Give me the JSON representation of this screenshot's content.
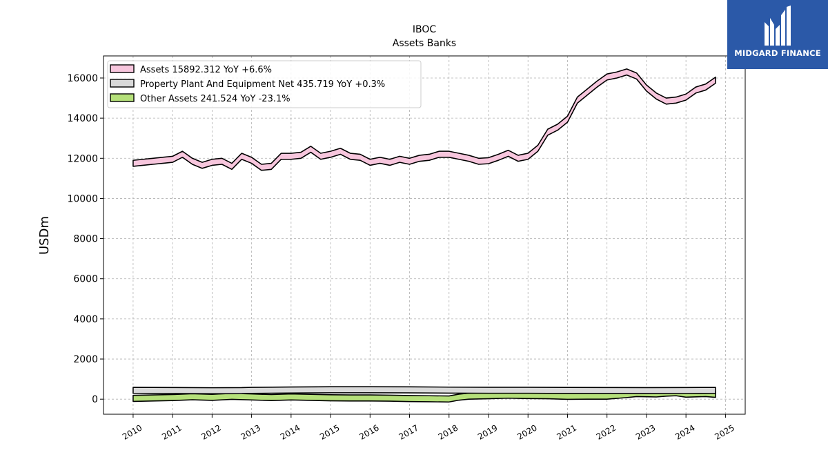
{
  "chart_data": {
    "type": "area",
    "title": "IBOC",
    "subtitle": "Assets Banks",
    "xlabel": "",
    "ylabel": "USDm",
    "x_tick_labels": [
      "2010",
      "2011",
      "2012",
      "2013",
      "2014",
      "2015",
      "2016",
      "2017",
      "2018",
      "2019",
      "2020",
      "2021",
      "2022",
      "2023",
      "2024",
      "2025"
    ],
    "y_tick_labels": [
      "0",
      "2000",
      "4000",
      "6000",
      "8000",
      "10000",
      "12000",
      "14000",
      "16000"
    ],
    "xlim": [
      2009.25,
      2025.5
    ],
    "ylim": [
      -750,
      17100
    ],
    "grid": true,
    "legend_position": "top-left",
    "series": [
      {
        "name": "Assets",
        "legend_label": "Assets  15892.312 YoY +6.6%",
        "fill_color": "#f7c6dd",
        "x": [
          2010.0,
          2010.25,
          2010.5,
          2010.75,
          2011.0,
          2011.25,
          2011.5,
          2011.75,
          2012.0,
          2012.25,
          2012.5,
          2012.75,
          2013.0,
          2013.25,
          2013.5,
          2013.75,
          2014.0,
          2014.25,
          2014.5,
          2014.75,
          2015.0,
          2015.25,
          2015.5,
          2015.75,
          2016.0,
          2016.25,
          2016.5,
          2016.75,
          2017.0,
          2017.25,
          2017.5,
          2017.75,
          2018.0,
          2018.25,
          2018.5,
          2018.75,
          2019.0,
          2019.25,
          2019.5,
          2019.75,
          2020.0,
          2020.25,
          2020.5,
          2020.75,
          2021.0,
          2021.25,
          2021.5,
          2021.75,
          2022.0,
          2022.25,
          2022.5,
          2022.75,
          2023.0,
          2023.25,
          2023.5,
          2023.75,
          2024.0,
          2024.25,
          2024.5,
          2024.75
        ],
        "values": [
          11750,
          11800,
          11850,
          11900,
          11950,
          12200,
          11850,
          11650,
          11800,
          11850,
          11600,
          12100,
          11900,
          11550,
          11600,
          12100,
          12100,
          12150,
          12450,
          12100,
          12200,
          12350,
          12100,
          12050,
          11800,
          11900,
          11800,
          11950,
          11850,
          12000,
          12050,
          12200,
          12200,
          12100,
          12000,
          11850,
          11880,
          12050,
          12250,
          12000,
          12100,
          12500,
          13300,
          13550,
          13950,
          14900,
          15300,
          15700,
          16050,
          16150,
          16300,
          16100,
          15500,
          15100,
          14850,
          14900,
          15050,
          15400,
          15550,
          15892
        ]
      },
      {
        "name": "Property Plant And Equipment Net",
        "legend_label": "Property Plant And Equipment Net  435.719 YoY +0.3%",
        "fill_color": "#d9d9d9",
        "x": [
          2010.0,
          2011.0,
          2012.0,
          2012.75,
          2013.0,
          2014.0,
          2015.0,
          2016.0,
          2017.0,
          2018.0,
          2019.0,
          2020.0,
          2021.0,
          2022.0,
          2023.0,
          2024.0,
          2024.75
        ],
        "values": [
          440,
          430,
          420,
          425,
          440,
          455,
          470,
          470,
          465,
          450,
          445,
          445,
          435,
          430,
          425,
          432,
          436
        ]
      },
      {
        "name": "Other Assets",
        "legend_label": "Other Assets  241.524 YoY -23.1%",
        "fill_color": "#b5e07a",
        "x": [
          2010.0,
          2010.5,
          2011.0,
          2011.5,
          2012.0,
          2012.5,
          2013.0,
          2013.5,
          2014.0,
          2014.5,
          2015.0,
          2015.5,
          2016.0,
          2016.5,
          2017.0,
          2017.5,
          2018.0,
          2018.25,
          2018.5,
          2019.0,
          2019.5,
          2020.0,
          2020.5,
          2021.0,
          2021.5,
          2022.0,
          2022.5,
          2022.75,
          2023.0,
          2023.25,
          2023.5,
          2023.75,
          2024.0,
          2024.5,
          2024.75
        ],
        "values": [
          40,
          60,
          80,
          120,
          90,
          140,
          110,
          80,
          110,
          90,
          70,
          60,
          60,
          50,
          30,
          20,
          10,
          100,
          150,
          170,
          200,
          180,
          170,
          140,
          150,
          150,
          230,
          280,
          270,
          260,
          300,
          320,
          250,
          280,
          242
        ]
      }
    ]
  }
}
